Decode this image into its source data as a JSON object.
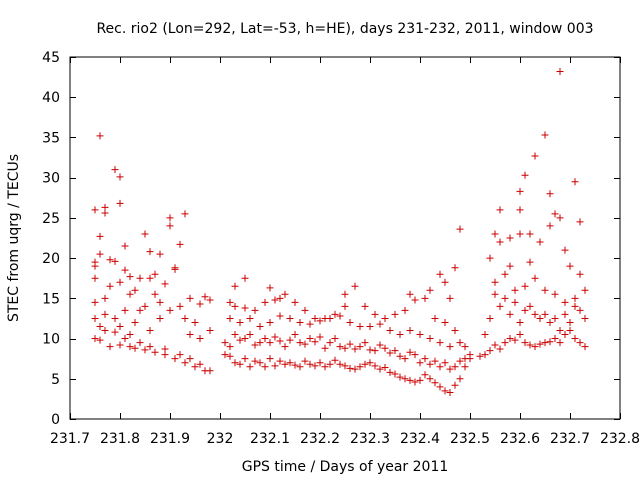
{
  "chart_data": {
    "type": "scatter",
    "title": "Rec. rio2 (Lon=292, Lat=-53, h=HE), days 231-232, 2011, window 003",
    "xlabel": "GPS time / Days of year 2011",
    "ylabel": "STEC from uqrg / TECUs",
    "xlim": [
      231.7,
      232.8
    ],
    "ylim": [
      0,
      45
    ],
    "xticks": [
      231.7,
      231.8,
      231.9,
      232,
      232.1,
      232.2,
      232.3,
      232.4,
      232.5,
      232.6,
      232.7,
      232.8
    ],
    "xtick_labels": [
      "231.7",
      "231.8",
      "231.9",
      "232",
      "232.1",
      "232.2",
      "232.3",
      "232.4",
      "232.5",
      "232.6",
      "232.7",
      "232.8"
    ],
    "yticks": [
      0,
      5,
      10,
      15,
      20,
      25,
      30,
      35,
      40,
      45
    ],
    "ytick_labels": [
      "0",
      "5",
      "10",
      "15",
      "20",
      "25",
      "30",
      "35",
      "40",
      "45"
    ],
    "grid": false,
    "legend": "none",
    "marker": "+",
    "color": "#cc0000",
    "series": [
      {
        "x": [
          231.75,
          231.75,
          231.75,
          231.75,
          231.75,
          231.75,
          231.75,
          231.76,
          231.76,
          231.76,
          231.77,
          231.77,
          231.77,
          231.77,
          231.77,
          231.78,
          231.78,
          231.79,
          231.79,
          231.79,
          231.8,
          231.8,
          231.8,
          231.8,
          231.81,
          231.81,
          231.81,
          231.82,
          231.82,
          231.82,
          231.82,
          231.83,
          231.83,
          231.84,
          231.84,
          231.85,
          231.85,
          231.86,
          231.86,
          231.86,
          231.87,
          231.87,
          231.88,
          231.88,
          231.88,
          231.89,
          231.9,
          231.9,
          231.9,
          231.91,
          231.91,
          231.92,
          231.92,
          231.93,
          231.93,
          231.94,
          231.94,
          231.95,
          231.96,
          231.96,
          231.97,
          231.98,
          231.98,
          231.76,
          231.78,
          231.8,
          231.83,
          231.85,
          231.87,
          231.89,
          231.91,
          231.93,
          231.95,
          231.97,
          231.76,
          231.79,
          231.81,
          231.84,
          231.86,
          231.89,
          231.92,
          231.94,
          231.96,
          231.98,
          232.01,
          232.02,
          232.03,
          232.04,
          232.05,
          232.06,
          232.07,
          232.08,
          232.09,
          232.1,
          232.11,
          232.12,
          232.13,
          232.14,
          232.15,
          232.16,
          232.17,
          232.18,
          232.19,
          232.2,
          232.21,
          232.22,
          232.23,
          232.24,
          232.25,
          232.26,
          232.27,
          232.28,
          232.29,
          232.3,
          232.31,
          232.32,
          232.33,
          232.34,
          232.35,
          232.36,
          232.37,
          232.38,
          232.39,
          232.4,
          232.41,
          232.42,
          232.43,
          232.44,
          232.45,
          232.46,
          232.47,
          232.48,
          232.49,
          232.5,
          232.01,
          232.02,
          232.03,
          232.04,
          232.05,
          232.06,
          232.07,
          232.08,
          232.09,
          232.1,
          232.11,
          232.12,
          232.13,
          232.14,
          232.15,
          232.16,
          232.17,
          232.18,
          232.19,
          232.2,
          232.21,
          232.22,
          232.23,
          232.24,
          232.25,
          232.26,
          232.27,
          232.28,
          232.29,
          232.3,
          232.31,
          232.32,
          232.33,
          232.34,
          232.35,
          232.36,
          232.37,
          232.38,
          232.39,
          232.4,
          232.41,
          232.42,
          232.43,
          232.44,
          232.45,
          232.46,
          232.47,
          232.48,
          232.49,
          232.5,
          232.02,
          232.04,
          232.06,
          232.08,
          232.1,
          232.12,
          232.14,
          232.16,
          232.18,
          232.2,
          232.22,
          232.24,
          232.26,
          232.28,
          232.3,
          232.32,
          232.34,
          232.36,
          232.38,
          232.4,
          232.42,
          232.44,
          232.46,
          232.48,
          232.02,
          232.03,
          232.05,
          232.07,
          232.09,
          232.11,
          232.13,
          232.15,
          232.17,
          232.19,
          232.21,
          232.23,
          232.25,
          232.27,
          232.29,
          232.31,
          232.33,
          232.35,
          232.37,
          232.39,
          232.41,
          232.43,
          232.45,
          232.47,
          232.49,
          232.03,
          232.05,
          232.1,
          232.12,
          232.25,
          232.38,
          232.45,
          232.47,
          232.44,
          232.42,
          232.46,
          232.48,
          232.52,
          232.53,
          232.54,
          232.55,
          232.56,
          232.57,
          232.58,
          232.59,
          232.6,
          232.61,
          232.62,
          232.63,
          232.64,
          232.65,
          232.66,
          232.67,
          232.68,
          232.69,
          232.7,
          232.71,
          232.72,
          232.73,
          232.53,
          232.54,
          232.55,
          232.56,
          232.57,
          232.58,
          232.59,
          232.6,
          232.61,
          232.62,
          232.63,
          232.64,
          232.65,
          232.66,
          232.67,
          232.68,
          232.69,
          232.7,
          232.71,
          232.72,
          232.73,
          232.54,
          232.56,
          232.58,
          232.6,
          232.62,
          232.64,
          232.66,
          232.68,
          232.7,
          232.72,
          232.55,
          232.57,
          232.59,
          232.61,
          232.63,
          232.65,
          232.67,
          232.69,
          232.71,
          232.73,
          232.56,
          232.6,
          232.61,
          232.6,
          232.63,
          232.65,
          232.66,
          232.68,
          232.67,
          232.69,
          232.71,
          232.72,
          232.62,
          232.58,
          232.55
        ],
        "y": [
          26.0,
          19.5,
          17.5,
          14.5,
          12.5,
          10.0,
          19.0,
          35.2,
          22.7,
          20.5,
          15.0,
          13.0,
          11.0,
          26.3,
          25.6,
          19.8,
          16.5,
          31.0,
          19.6,
          12.5,
          30.1,
          26.8,
          17.0,
          11.5,
          21.5,
          18.5,
          13.5,
          17.7,
          15.5,
          10.5,
          9.0,
          16.0,
          12.0,
          17.5,
          13.5,
          23.0,
          14.0,
          20.8,
          17.5,
          11.0,
          18.0,
          15.5,
          20.5,
          14.5,
          12.5,
          16.8,
          25.0,
          24.0,
          13.5,
          18.8,
          18.6,
          21.7,
          14.0,
          25.5,
          12.5,
          15.0,
          10.5,
          12.0,
          14.3,
          10.0,
          15.2,
          14.8,
          11.0,
          9.8,
          9.0,
          9.2,
          8.8,
          8.6,
          8.3,
          8.0,
          7.5,
          7.0,
          6.5,
          6.0,
          11.5,
          10.8,
          10.0,
          9.5,
          9.0,
          8.7,
          8.0,
          7.5,
          6.8,
          6.0,
          8.0,
          7.8,
          7.0,
          6.8,
          7.5,
          6.5,
          7.2,
          7.0,
          6.5,
          7.5,
          6.6,
          7.2,
          6.8,
          7.0,
          6.7,
          6.5,
          7.2,
          6.8,
          6.6,
          7.0,
          6.5,
          6.8,
          7.3,
          6.8,
          6.6,
          6.3,
          6.2,
          6.5,
          6.8,
          7.0,
          6.6,
          6.2,
          6.4,
          5.8,
          5.6,
          5.2,
          5.0,
          4.8,
          4.6,
          4.8,
          5.5,
          5.0,
          4.5,
          4.0,
          3.5,
          3.3,
          4.2,
          5.0,
          6.5,
          7.5,
          9.5,
          9.0,
          10.5,
          9.8,
          10.0,
          10.5,
          9.2,
          9.5,
          10.0,
          9.5,
          10.2,
          9.7,
          9.0,
          9.8,
          10.5,
          9.5,
          9.3,
          10.0,
          9.6,
          10.2,
          8.8,
          9.5,
          10.0,
          9.0,
          8.8,
          9.3,
          8.7,
          9.0,
          9.5,
          8.6,
          8.5,
          9.2,
          8.8,
          8.2,
          8.5,
          7.8,
          7.5,
          8.3,
          8.0,
          7.0,
          7.5,
          6.8,
          7.2,
          6.5,
          7.0,
          6.2,
          6.5,
          7.2,
          7.5,
          8.0,
          12.5,
          12.0,
          12.5,
          11.5,
          12.0,
          12.8,
          12.5,
          12.0,
          11.8,
          12.2,
          12.5,
          12.8,
          12.0,
          11.5,
          11.5,
          11.8,
          11.0,
          10.5,
          11.0,
          10.5,
          10.0,
          9.5,
          9.0,
          9.5,
          14.5,
          14.0,
          13.8,
          13.5,
          14.5,
          14.8,
          15.5,
          14.5,
          13.5,
          12.5,
          12.5,
          13.0,
          15.5,
          16.5,
          14.0,
          13.0,
          12.5,
          13.0,
          13.5,
          14.8,
          15.0,
          12.5,
          12.0,
          11.0,
          9.0,
          16.5,
          17.5,
          16.3,
          15.0,
          14.0,
          15.5,
          17.0,
          18.8,
          18.0,
          16.0,
          15.0,
          23.6,
          7.8,
          8.0,
          8.5,
          9.2,
          8.7,
          9.5,
          10.0,
          9.8,
          10.5,
          9.5,
          9.2,
          9.0,
          9.3,
          9.5,
          9.6,
          10.0,
          9.5,
          10.5,
          11.0,
          10.0,
          9.5,
          9.0,
          10.5,
          12.5,
          15.5,
          14.0,
          15.0,
          13.0,
          14.5,
          12.0,
          13.5,
          14.0,
          13.0,
          12.5,
          13.0,
          12.0,
          12.5,
          11.0,
          13.0,
          12.0,
          14.0,
          13.5,
          12.5,
          20.0,
          22.0,
          19.0,
          23.0,
          19.5,
          22.0,
          24.0,
          25.0,
          19.0,
          18.0,
          17.0,
          18.0,
          16.0,
          16.5,
          17.5,
          16.0,
          15.5,
          14.5,
          15.0,
          16.0,
          26.0,
          26.0,
          30.3,
          28.3,
          32.7,
          35.3,
          28.0,
          43.2,
          25.5,
          21.0,
          29.5,
          24.5,
          23.0,
          22.5,
          23.0
        ]
      }
    ]
  }
}
